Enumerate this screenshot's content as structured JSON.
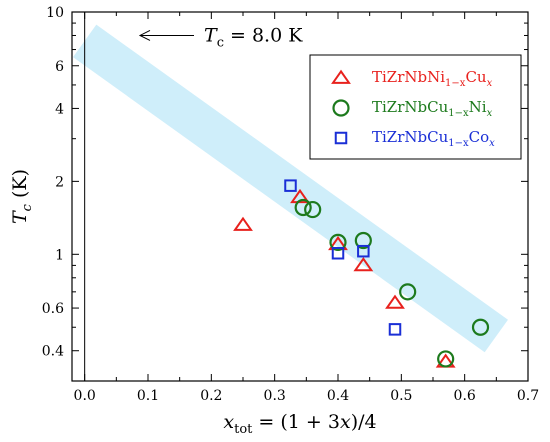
{
  "chart_data": {
    "type": "scatter",
    "title": "",
    "xlabel": {
      "main": "x",
      "sub": "tot",
      "rest": " = (1 + 3",
      "var": "x",
      "end": ")/4"
    },
    "ylabel": {
      "main": "T",
      "sub": "c",
      "rest": " (K)"
    },
    "xlim": [
      -0.02,
      0.7
    ],
    "ylim": [
      0.3,
      10
    ],
    "y_scale": "log",
    "x_ticks": [
      "0.0",
      "0.1",
      "0.2",
      "0.3",
      "0.4",
      "0.5",
      "0.6",
      "0.7"
    ],
    "x_tick_values": [
      0.0,
      0.1,
      0.2,
      0.3,
      0.4,
      0.5,
      0.6,
      0.7
    ],
    "y_ticks": [
      "0.4",
      "0.6",
      "1",
      "2",
      "4",
      "6",
      "10"
    ],
    "y_tick_values": [
      0.4,
      0.6,
      1,
      2,
      4,
      6,
      10
    ],
    "grid": false,
    "legend_position": "top-right",
    "annotation": {
      "main": "T",
      "sub": "c",
      "rest": " = 8.0 K"
    },
    "band": {
      "color": "#cfeefa",
      "center_start": [
        0.0,
        7.6
      ],
      "center_end": [
        0.65,
        0.46
      ]
    },
    "series": [
      {
        "name": {
          "pre": "TiZrNbNi",
          "sub": "1−x",
          "mid": "Cu",
          "post_sub": "x"
        },
        "marker": "triangle",
        "color": "#e8211d",
        "x": [
          0.25,
          0.34,
          0.4,
          0.44,
          0.49,
          0.57
        ],
        "y": [
          1.32,
          1.72,
          1.1,
          0.9,
          0.63,
          0.36
        ]
      },
      {
        "name": {
          "pre": "TiZrNbCu",
          "sub": "1−x",
          "mid": "Ni",
          "post_sub": "x"
        },
        "marker": "circle",
        "color": "#1d7a1d",
        "x": [
          0.345,
          0.36,
          0.4,
          0.44,
          0.51,
          0.57,
          0.625
        ],
        "y": [
          1.56,
          1.53,
          1.12,
          1.14,
          0.7,
          0.37,
          0.5
        ]
      },
      {
        "name": {
          "pre": "TiZrNbCu",
          "sub": "1−x",
          "mid": "Co",
          "post_sub": "x"
        },
        "marker": "square",
        "color": "#1a2fd6",
        "x": [
          0.325,
          0.4,
          0.44,
          0.49
        ],
        "y": [
          1.92,
          1.01,
          1.03,
          0.49
        ]
      }
    ]
  }
}
